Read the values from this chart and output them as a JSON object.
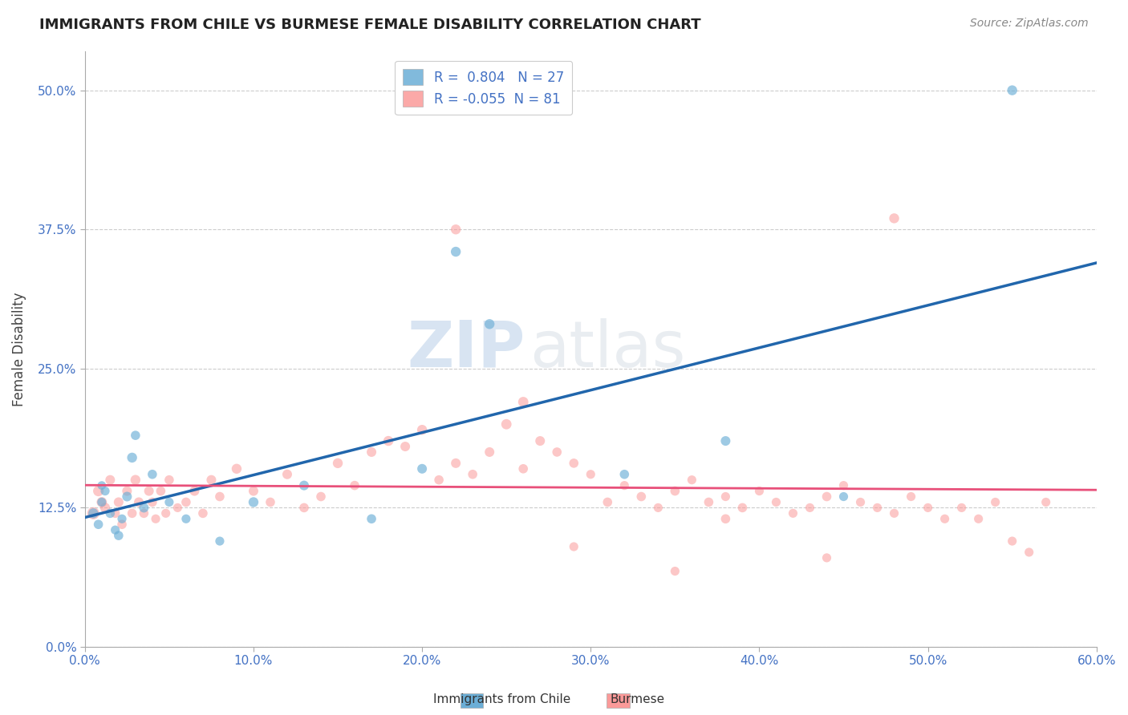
{
  "title": "IMMIGRANTS FROM CHILE VS BURMESE FEMALE DISABILITY CORRELATION CHART",
  "source": "Source: ZipAtlas.com",
  "ylabel": "Female Disability",
  "legend_label1": "Immigrants from Chile",
  "legend_label2": "Burmese",
  "r1": 0.804,
  "n1": 27,
  "r2": -0.055,
  "n2": 81,
  "x_min": 0.0,
  "x_max": 0.6,
  "y_ticks": [
    0.0,
    0.125,
    0.25,
    0.375,
    0.5
  ],
  "y_tick_labels": [
    "0.0%",
    "12.5%",
    "25.0%",
    "37.5%",
    "50.0%"
  ],
  "x_ticks": [
    0.0,
    0.1,
    0.2,
    0.3,
    0.4,
    0.5,
    0.6
  ],
  "x_tick_labels": [
    "0.0%",
    "10.0%",
    "20.0%",
    "30.0%",
    "40.0%",
    "50.0%",
    "60.0%"
  ],
  "color_chile": "#6baed6",
  "color_burmese": "#fb9a99",
  "color_line_chile": "#2166ac",
  "color_line_burmese": "#e8507a",
  "watermark_zip": "ZIP",
  "watermark_atlas": "atlas",
  "blue_scatter_x": [
    0.005,
    0.008,
    0.01,
    0.01,
    0.012,
    0.015,
    0.018,
    0.02,
    0.022,
    0.025,
    0.028,
    0.03,
    0.035,
    0.04,
    0.05,
    0.06,
    0.08,
    0.1,
    0.13,
    0.17,
    0.2,
    0.24,
    0.22,
    0.32,
    0.38,
    0.45,
    0.55
  ],
  "blue_scatter_y": [
    0.12,
    0.11,
    0.13,
    0.145,
    0.14,
    0.12,
    0.105,
    0.1,
    0.115,
    0.135,
    0.17,
    0.19,
    0.125,
    0.155,
    0.13,
    0.115,
    0.095,
    0.13,
    0.145,
    0.115,
    0.16,
    0.29,
    0.355,
    0.155,
    0.185,
    0.135,
    0.5
  ],
  "blue_scatter_sizes": [
    80,
    70,
    65,
    60,
    65,
    70,
    65,
    70,
    65,
    75,
    80,
    70,
    75,
    70,
    65,
    65,
    65,
    80,
    75,
    70,
    75,
    80,
    80,
    70,
    75,
    65,
    80
  ],
  "pink_scatter_x": [
    0.005,
    0.008,
    0.01,
    0.012,
    0.015,
    0.018,
    0.02,
    0.022,
    0.025,
    0.028,
    0.03,
    0.032,
    0.035,
    0.038,
    0.04,
    0.042,
    0.045,
    0.048,
    0.05,
    0.055,
    0.06,
    0.065,
    0.07,
    0.075,
    0.08,
    0.09,
    0.1,
    0.11,
    0.12,
    0.13,
    0.14,
    0.15,
    0.16,
    0.17,
    0.18,
    0.19,
    0.2,
    0.21,
    0.22,
    0.23,
    0.24,
    0.25,
    0.26,
    0.27,
    0.28,
    0.29,
    0.3,
    0.31,
    0.32,
    0.33,
    0.34,
    0.35,
    0.36,
    0.37,
    0.38,
    0.39,
    0.4,
    0.41,
    0.42,
    0.43,
    0.44,
    0.45,
    0.46,
    0.47,
    0.48,
    0.49,
    0.5,
    0.51,
    0.52,
    0.53,
    0.54,
    0.55,
    0.56,
    0.26,
    0.29,
    0.38,
    0.44,
    0.48,
    0.22,
    0.35,
    0.57
  ],
  "pink_scatter_y": [
    0.12,
    0.14,
    0.13,
    0.125,
    0.15,
    0.12,
    0.13,
    0.11,
    0.14,
    0.12,
    0.15,
    0.13,
    0.12,
    0.14,
    0.13,
    0.115,
    0.14,
    0.12,
    0.15,
    0.125,
    0.13,
    0.14,
    0.12,
    0.15,
    0.135,
    0.16,
    0.14,
    0.13,
    0.155,
    0.125,
    0.135,
    0.165,
    0.145,
    0.175,
    0.185,
    0.18,
    0.195,
    0.15,
    0.165,
    0.155,
    0.175,
    0.2,
    0.16,
    0.185,
    0.175,
    0.165,
    0.155,
    0.13,
    0.145,
    0.135,
    0.125,
    0.14,
    0.15,
    0.13,
    0.135,
    0.125,
    0.14,
    0.13,
    0.12,
    0.125,
    0.135,
    0.145,
    0.13,
    0.125,
    0.12,
    0.135,
    0.125,
    0.115,
    0.125,
    0.115,
    0.13,
    0.095,
    0.085,
    0.22,
    0.09,
    0.115,
    0.08,
    0.385,
    0.375,
    0.068,
    0.13
  ],
  "pink_scatter_sizes": [
    120,
    90,
    85,
    80,
    75,
    70,
    75,
    70,
    75,
    70,
    80,
    75,
    70,
    75,
    70,
    65,
    70,
    65,
    70,
    65,
    70,
    75,
    70,
    75,
    70,
    80,
    75,
    70,
    75,
    70,
    70,
    80,
    70,
    75,
    80,
    75,
    80,
    70,
    75,
    70,
    75,
    85,
    70,
    75,
    70,
    70,
    65,
    70,
    65,
    70,
    65,
    70,
    65,
    70,
    65,
    70,
    65,
    65,
    65,
    65,
    70,
    65,
    65,
    65,
    65,
    65,
    65,
    65,
    65,
    65,
    65,
    65,
    65,
    85,
    65,
    70,
    65,
    80,
    80,
    65,
    65
  ]
}
